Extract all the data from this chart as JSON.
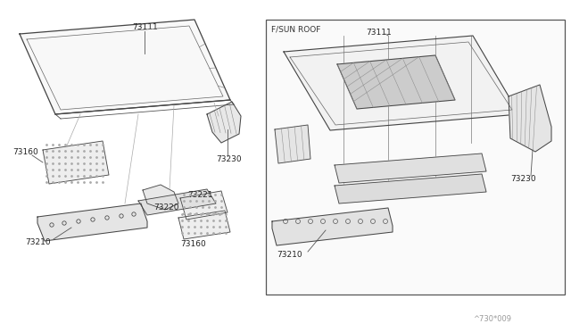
{
  "bg": "#ffffff",
  "lc": "#444444",
  "tc": "#333333",
  "fig_w": 6.4,
  "fig_h": 3.72,
  "dpi": 100,
  "watermark": "^730*009"
}
